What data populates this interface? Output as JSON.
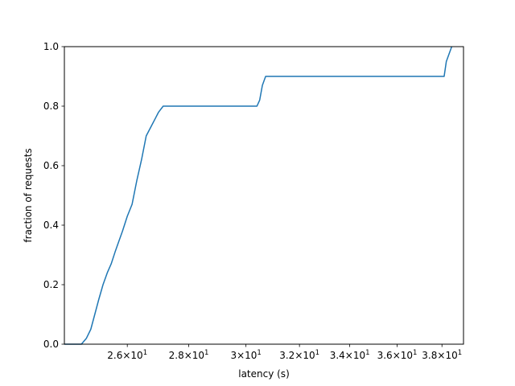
{
  "chart_data": {
    "type": "line",
    "title": "",
    "xlabel": "latency (s)",
    "ylabel": "fraction of requests",
    "xscale": "log",
    "xlim": [
      24.1,
      39.0
    ],
    "ylim": [
      0,
      1.0
    ],
    "grid": false,
    "x_ticks": [
      {
        "value": 26,
        "mant": "2.6",
        "exp": "1"
      },
      {
        "value": 28,
        "mant": "2.8",
        "exp": "1"
      },
      {
        "value": 30,
        "mant": "3",
        "exp": "1"
      },
      {
        "value": 32,
        "mant": "3.2",
        "exp": "1"
      },
      {
        "value": 34,
        "mant": "3.4",
        "exp": "1"
      },
      {
        "value": 36,
        "mant": "3.6",
        "exp": "1"
      },
      {
        "value": 38,
        "mant": "3.8",
        "exp": "1"
      }
    ],
    "y_ticks": [
      "0.0",
      "0.2",
      "0.4",
      "0.6",
      "0.8",
      "1.0"
    ],
    "series": [
      {
        "color": "#1f77b4",
        "x": [
          24.1,
          24.6,
          24.75,
          24.88,
          25.0,
          25.12,
          25.25,
          25.38,
          25.5,
          25.62,
          25.75,
          25.85,
          26.0,
          26.15,
          26.3,
          26.45,
          26.6,
          26.75,
          26.9,
          27.0,
          27.15,
          27.3,
          27.4,
          30.4,
          30.5,
          30.6,
          30.72,
          38.1,
          38.2,
          38.45
        ],
        "y": [
          0.0,
          0.0,
          0.02,
          0.05,
          0.1,
          0.15,
          0.2,
          0.24,
          0.27,
          0.31,
          0.35,
          0.38,
          0.43,
          0.47,
          0.55,
          0.62,
          0.7,
          0.73,
          0.76,
          0.78,
          0.8,
          0.8,
          0.8,
          0.8,
          0.82,
          0.87,
          0.9,
          0.9,
          0.95,
          1.0
        ]
      }
    ]
  }
}
